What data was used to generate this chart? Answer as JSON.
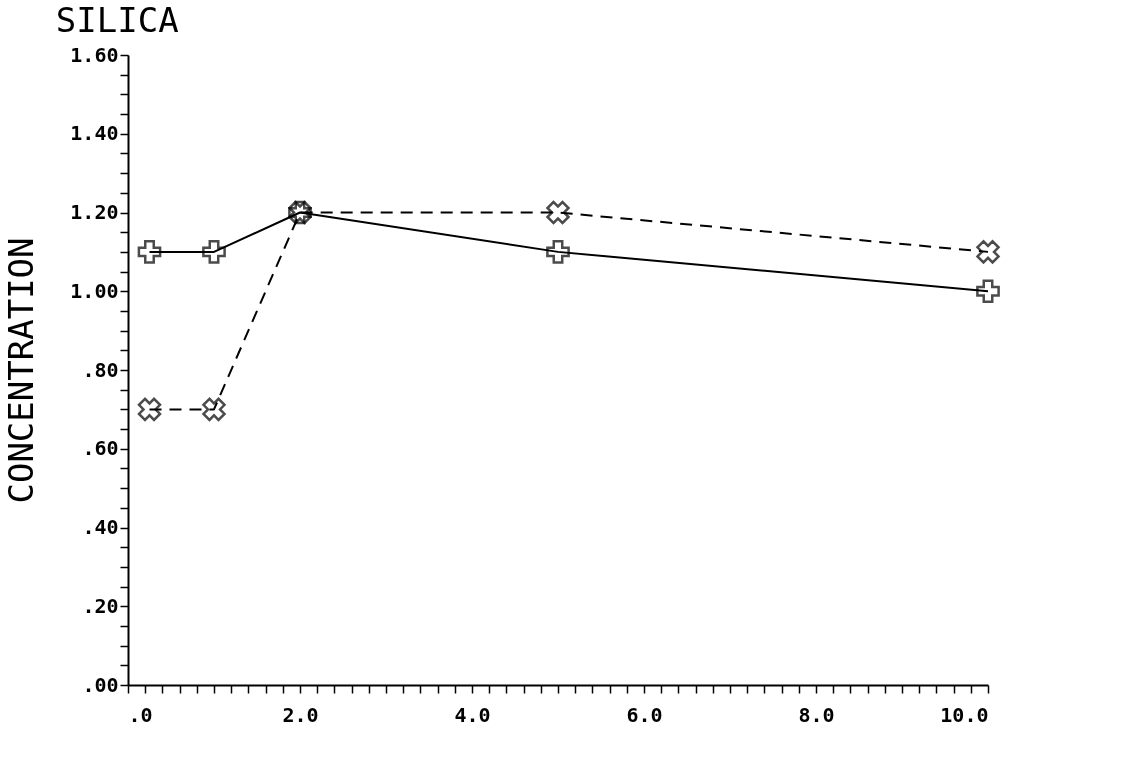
{
  "chart_data": {
    "type": "line",
    "title": "SILICA",
    "ylabel": "CONCENTRATION",
    "xlim": [
      0,
      10
    ],
    "ylim": [
      0,
      1.6
    ],
    "xticks": [
      {
        "value": 0,
        "label": ".0"
      },
      {
        "value": 0.2,
        "label": null
      },
      {
        "value": 0.4,
        "label": null
      },
      {
        "value": 0.6,
        "label": null
      },
      {
        "value": 0.8,
        "label": null
      },
      {
        "value": 1,
        "label": null
      },
      {
        "value": 1.2,
        "label": null
      },
      {
        "value": 1.4,
        "label": null
      },
      {
        "value": 1.6,
        "label": null
      },
      {
        "value": 1.8,
        "label": null
      },
      {
        "value": 2,
        "label": "2.0"
      },
      {
        "value": 2.2,
        "label": null
      },
      {
        "value": 2.4,
        "label": null
      },
      {
        "value": 2.6,
        "label": null
      },
      {
        "value": 2.8,
        "label": null
      },
      {
        "value": 3,
        "label": null
      },
      {
        "value": 3.2,
        "label": null
      },
      {
        "value": 3.4,
        "label": null
      },
      {
        "value": 3.6,
        "label": null
      },
      {
        "value": 3.8,
        "label": null
      },
      {
        "value": 4,
        "label": "4.0"
      },
      {
        "value": 4.2,
        "label": null
      },
      {
        "value": 4.4,
        "label": null
      },
      {
        "value": 4.6,
        "label": null
      },
      {
        "value": 4.8,
        "label": null
      },
      {
        "value": 5,
        "label": null
      },
      {
        "value": 5.2,
        "label": null
      },
      {
        "value": 5.4,
        "label": null
      },
      {
        "value": 5.6,
        "label": null
      },
      {
        "value": 5.8,
        "label": null
      },
      {
        "value": 6,
        "label": "6.0"
      },
      {
        "value": 6.2,
        "label": null
      },
      {
        "value": 6.4,
        "label": null
      },
      {
        "value": 6.6,
        "label": null
      },
      {
        "value": 6.8,
        "label": null
      },
      {
        "value": 7,
        "label": null
      },
      {
        "value": 7.2,
        "label": null
      },
      {
        "value": 7.4,
        "label": null
      },
      {
        "value": 7.6,
        "label": null
      },
      {
        "value": 7.8,
        "label": null
      },
      {
        "value": 8,
        "label": "8.0"
      },
      {
        "value": 8.2,
        "label": null
      },
      {
        "value": 8.4,
        "label": null
      },
      {
        "value": 8.6,
        "label": null
      },
      {
        "value": 8.8,
        "label": null
      },
      {
        "value": 9,
        "label": null
      },
      {
        "value": 9.2,
        "label": null
      },
      {
        "value": 9.4,
        "label": null
      },
      {
        "value": 9.6,
        "label": null
      },
      {
        "value": 9.8,
        "label": null
      },
      {
        "value": 10,
        "label": "10.0"
      }
    ],
    "yticks": [
      {
        "value": 0,
        "label": ".00"
      },
      {
        "value": 0.05,
        "label": null
      },
      {
        "value": 0.1,
        "label": null
      },
      {
        "value": 0.15,
        "label": null
      },
      {
        "value": 0.2,
        "label": ".20"
      },
      {
        "value": 0.25,
        "label": null
      },
      {
        "value": 0.3,
        "label": null
      },
      {
        "value": 0.35,
        "label": null
      },
      {
        "value": 0.4,
        "label": ".40"
      },
      {
        "value": 0.45,
        "label": null
      },
      {
        "value": 0.5,
        "label": null
      },
      {
        "value": 0.55,
        "label": null
      },
      {
        "value": 0.6,
        "label": ".60"
      },
      {
        "value": 0.65,
        "label": null
      },
      {
        "value": 0.7,
        "label": null
      },
      {
        "value": 0.75,
        "label": null
      },
      {
        "value": 0.8,
        "label": ".80"
      },
      {
        "value": 0.85,
        "label": null
      },
      {
        "value": 0.9,
        "label": null
      },
      {
        "value": 0.95,
        "label": null
      },
      {
        "value": 1,
        "label": "1.00"
      },
      {
        "value": 1.05,
        "label": null
      },
      {
        "value": 1.1,
        "label": null
      },
      {
        "value": 1.15,
        "label": null
      },
      {
        "value": 1.2,
        "label": "1.20"
      },
      {
        "value": 1.25,
        "label": null
      },
      {
        "value": 1.3,
        "label": null
      },
      {
        "value": 1.35,
        "label": null
      },
      {
        "value": 1.4,
        "label": "1.40"
      },
      {
        "value": 1.45,
        "label": null
      },
      {
        "value": 1.5,
        "label": null
      },
      {
        "value": 1.55,
        "label": null
      },
      {
        "value": 1.6,
        "label": "1.60"
      }
    ],
    "x": [
      0.25,
      1,
      2,
      5,
      10
    ],
    "series": [
      {
        "color": "#000000",
        "values": [
          1.1,
          1.1,
          1.2,
          1.1,
          1.0
        ],
        "marker": "cross",
        "line_style": "solid"
      },
      {
        "color": "#000000",
        "values": [
          0.7,
          0.7,
          1.2,
          1.2,
          1.1
        ],
        "marker": "x",
        "line_style": "dashed"
      }
    ],
    "grid": false,
    "legend": false
  }
}
